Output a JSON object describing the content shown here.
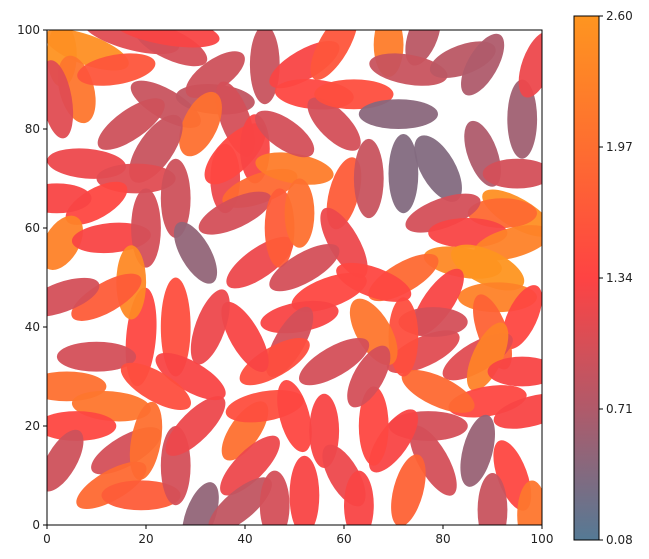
{
  "chart_data": {
    "type": "scatter",
    "marker": "ellipse",
    "title": "",
    "xlabel": "",
    "ylabel": "",
    "xlim": [
      0,
      100
    ],
    "ylim": [
      0,
      100
    ],
    "xticks": [
      "0",
      "20",
      "40",
      "60",
      "80",
      "100"
    ],
    "yticks": [
      "0",
      "20",
      "40",
      "60",
      "80",
      "100"
    ],
    "grid": false,
    "colorbar": {
      "min": 0.08,
      "max": 2.6,
      "ticks": [
        "0.08",
        "0.71",
        "1.34",
        "1.97",
        "2.60"
      ],
      "colors": [
        "#557a95",
        "#b05a6a",
        "#fe4343",
        "#fe6e30",
        "#fe9520"
      ]
    },
    "ellipses": [
      {
        "x": 3,
        "y": 95,
        "w": 6,
        "h": 13,
        "angle": 0,
        "c": 2.55
      },
      {
        "x": 8,
        "y": 96,
        "w": 18,
        "h": 6,
        "angle": -20,
        "c": 2.5
      },
      {
        "x": 6,
        "y": 88,
        "w": 7,
        "h": 14,
        "angle": 15,
        "c": 2.1
      },
      {
        "x": 14,
        "y": 92,
        "w": 16,
        "h": 6,
        "angle": 10,
        "c": 1.6
      },
      {
        "x": 17,
        "y": 99,
        "w": 20,
        "h": 6,
        "angle": -15,
        "c": 1.1
      },
      {
        "x": 25,
        "y": 97,
        "w": 16,
        "h": 6,
        "angle": -25,
        "c": 1.0
      },
      {
        "x": 24,
        "y": 100,
        "w": 22,
        "h": 6,
        "angle": -10,
        "c": 1.3
      },
      {
        "x": 24,
        "y": 85,
        "w": 16,
        "h": 6,
        "angle": -30,
        "c": 0.9
      },
      {
        "x": 34,
        "y": 86,
        "w": 16,
        "h": 6,
        "angle": -5,
        "c": 0.85
      },
      {
        "x": 34,
        "y": 91,
        "w": 14,
        "h": 6,
        "angle": 35,
        "c": 0.95
      },
      {
        "x": 44,
        "y": 93,
        "w": 6,
        "h": 16,
        "angle": 0,
        "c": 0.9
      },
      {
        "x": 38,
        "y": 82,
        "w": 6,
        "h": 16,
        "angle": 20,
        "c": 1.0
      },
      {
        "x": 31,
        "y": 81,
        "w": 7,
        "h": 14,
        "angle": -25,
        "c": 2.0
      },
      {
        "x": 22,
        "y": 76,
        "w": 7,
        "h": 16,
        "angle": -35,
        "c": 0.9
      },
      {
        "x": 17,
        "y": 81,
        "w": 16,
        "h": 6,
        "angle": 35,
        "c": 0.95
      },
      {
        "x": 2,
        "y": 86,
        "w": 6,
        "h": 16,
        "angle": 10,
        "c": 1.1
      },
      {
        "x": 8,
        "y": 73,
        "w": 16,
        "h": 6,
        "angle": -5,
        "c": 1.2
      },
      {
        "x": 18,
        "y": 70,
        "w": 16,
        "h": 6,
        "angle": 0,
        "c": 1.1
      },
      {
        "x": 10,
        "y": 65,
        "w": 14,
        "h": 6,
        "angle": 30,
        "c": 1.4
      },
      {
        "x": 2,
        "y": 66,
        "w": 14,
        "h": 6,
        "angle": 0,
        "c": 1.3
      },
      {
        "x": 3,
        "y": 57,
        "w": 7,
        "h": 12,
        "angle": -30,
        "c": 2.3
      },
      {
        "x": 13,
        "y": 58,
        "w": 16,
        "h": 6,
        "angle": 5,
        "c": 1.3
      },
      {
        "x": 20,
        "y": 60,
        "w": 6,
        "h": 16,
        "angle": 0,
        "c": 1.0
      },
      {
        "x": 26,
        "y": 66,
        "w": 6,
        "h": 16,
        "angle": 0,
        "c": 0.95
      },
      {
        "x": 30,
        "y": 55,
        "w": 6,
        "h": 14,
        "angle": 30,
        "c": 0.5
      },
      {
        "x": 36,
        "y": 70,
        "w": 6,
        "h": 14,
        "angle": 0,
        "c": 1.2
      },
      {
        "x": 38,
        "y": 75,
        "w": 16,
        "h": 7,
        "angle": 45,
        "c": 1.4
      },
      {
        "x": 42,
        "y": 76,
        "w": 6,
        "h": 14,
        "angle": 0,
        "c": 1.3
      },
      {
        "x": 43,
        "y": 68,
        "w": 16,
        "h": 6,
        "angle": 20,
        "c": 1.9
      },
      {
        "x": 38,
        "y": 63,
        "w": 16,
        "h": 6,
        "angle": 25,
        "c": 1.0
      },
      {
        "x": 43,
        "y": 53,
        "w": 16,
        "h": 6,
        "angle": 35,
        "c": 1.2
      },
      {
        "x": 47,
        "y": 60,
        "w": 6,
        "h": 16,
        "angle": 0,
        "c": 1.7
      },
      {
        "x": 50,
        "y": 72,
        "w": 16,
        "h": 6,
        "angle": -10,
        "c": 2.2
      },
      {
        "x": 51,
        "y": 63,
        "w": 6,
        "h": 14,
        "angle": 0,
        "c": 2.0
      },
      {
        "x": 48,
        "y": 79,
        "w": 14,
        "h": 6,
        "angle": -35,
        "c": 1.0
      },
      {
        "x": 52,
        "y": 93,
        "w": 16,
        "h": 6,
        "angle": 30,
        "c": 1.3
      },
      {
        "x": 54,
        "y": 87,
        "w": 16,
        "h": 6,
        "angle": -5,
        "c": 1.4
      },
      {
        "x": 58,
        "y": 81,
        "w": 6,
        "h": 14,
        "angle": 45,
        "c": 1.0
      },
      {
        "x": 58,
        "y": 97,
        "w": 6,
        "h": 16,
        "angle": -30,
        "c": 1.6
      },
      {
        "x": 62,
        "y": 87,
        "w": 16,
        "h": 6,
        "angle": 0,
        "c": 1.5
      },
      {
        "x": 60,
        "y": 67,
        "w": 6,
        "h": 15,
        "angle": -15,
        "c": 1.7
      },
      {
        "x": 60,
        "y": 57,
        "w": 6,
        "h": 16,
        "angle": 30,
        "c": 1.2
      },
      {
        "x": 65,
        "y": 70,
        "w": 6,
        "h": 16,
        "angle": 0,
        "c": 0.9
      },
      {
        "x": 69,
        "y": 97,
        "w": 6,
        "h": 13,
        "angle": 0,
        "c": 2.2
      },
      {
        "x": 76,
        "y": 99,
        "w": 6,
        "h": 13,
        "angle": -20,
        "c": 0.8
      },
      {
        "x": 73,
        "y": 92,
        "w": 16,
        "h": 6,
        "angle": -10,
        "c": 0.9
      },
      {
        "x": 71,
        "y": 83,
        "w": 16,
        "h": 6,
        "angle": 0,
        "c": 0.45
      },
      {
        "x": 72,
        "y": 71,
        "w": 6,
        "h": 16,
        "angle": 0,
        "c": 0.4
      },
      {
        "x": 79,
        "y": 72,
        "w": 7,
        "h": 15,
        "angle": 30,
        "c": 0.4
      },
      {
        "x": 84,
        "y": 94,
        "w": 14,
        "h": 6,
        "angle": 20,
        "c": 0.8
      },
      {
        "x": 88,
        "y": 93,
        "w": 6,
        "h": 14,
        "angle": -30,
        "c": 0.7
      },
      {
        "x": 88,
        "y": 75,
        "w": 6,
        "h": 14,
        "angle": 20,
        "c": 0.7
      },
      {
        "x": 96,
        "y": 82,
        "w": 6,
        "h": 16,
        "angle": 0,
        "c": 0.6
      },
      {
        "x": 99,
        "y": 93,
        "w": 6,
        "h": 14,
        "angle": -20,
        "c": 1.2
      },
      {
        "x": 95,
        "y": 71,
        "w": 14,
        "h": 6,
        "angle": 0,
        "c": 1.0
      },
      {
        "x": 95,
        "y": 63,
        "w": 16,
        "h": 6,
        "angle": -30,
        "c": 2.5
      },
      {
        "x": 92,
        "y": 63,
        "w": 14,
        "h": 6,
        "angle": 0,
        "c": 1.9
      },
      {
        "x": 80,
        "y": 63,
        "w": 16,
        "h": 6,
        "angle": 20,
        "c": 1.0
      },
      {
        "x": 85,
        "y": 59,
        "w": 16,
        "h": 6,
        "angle": 0,
        "c": 1.3
      },
      {
        "x": 94,
        "y": 57,
        "w": 16,
        "h": 6,
        "angle": 15,
        "c": 2.3
      },
      {
        "x": 84,
        "y": 53,
        "w": 16,
        "h": 6,
        "angle": -10,
        "c": 2.4
      },
      {
        "x": 89,
        "y": 52,
        "w": 16,
        "h": 7,
        "angle": -25,
        "c": 2.6
      },
      {
        "x": 91,
        "y": 46,
        "w": 16,
        "h": 6,
        "angle": 0,
        "c": 2.3
      },
      {
        "x": 96,
        "y": 42,
        "w": 6,
        "h": 14,
        "angle": -25,
        "c": 1.4
      },
      {
        "x": 90,
        "y": 39,
        "w": 6,
        "h": 16,
        "angle": 20,
        "c": 1.8
      },
      {
        "x": 87,
        "y": 34,
        "w": 16,
        "h": 6,
        "angle": 30,
        "c": 1.1
      },
      {
        "x": 89,
        "y": 34,
        "w": 6,
        "h": 15,
        "angle": -25,
        "c": 2.3
      },
      {
        "x": 96,
        "y": 31,
        "w": 14,
        "h": 6,
        "angle": 0,
        "c": 1.3
      },
      {
        "x": 89,
        "y": 25,
        "w": 16,
        "h": 6,
        "angle": 10,
        "c": 1.4
      },
      {
        "x": 98,
        "y": 23,
        "w": 16,
        "h": 6,
        "angle": 15,
        "c": 1.3
      },
      {
        "x": 87,
        "y": 15,
        "w": 6,
        "h": 15,
        "angle": -15,
        "c": 0.55
      },
      {
        "x": 94,
        "y": 10,
        "w": 6,
        "h": 15,
        "angle": 20,
        "c": 1.4
      },
      {
        "x": 90,
        "y": 3,
        "w": 6,
        "h": 15,
        "angle": 0,
        "c": 0.9
      },
      {
        "x": 98,
        "y": 2,
        "w": 6,
        "h": 14,
        "angle": 0,
        "c": 2.1
      },
      {
        "x": 79,
        "y": 45,
        "w": 6,
        "h": 16,
        "angle": -35,
        "c": 1.3
      },
      {
        "x": 76,
        "y": 35,
        "w": 16,
        "h": 6,
        "angle": 25,
        "c": 1.1
      },
      {
        "x": 78,
        "y": 41,
        "w": 14,
        "h": 6,
        "angle": 0,
        "c": 1.0
      },
      {
        "x": 79,
        "y": 27,
        "w": 16,
        "h": 6,
        "angle": -25,
        "c": 1.9
      },
      {
        "x": 77,
        "y": 20,
        "w": 16,
        "h": 6,
        "angle": 0,
        "c": 1.0
      },
      {
        "x": 78,
        "y": 13,
        "w": 6,
        "h": 16,
        "angle": 30,
        "c": 1.0
      },
      {
        "x": 73,
        "y": 7,
        "w": 6,
        "h": 15,
        "angle": -15,
        "c": 1.8
      },
      {
        "x": 70,
        "y": 17,
        "w": 6,
        "h": 15,
        "angle": -35,
        "c": 1.3
      },
      {
        "x": 66,
        "y": 20,
        "w": 6,
        "h": 16,
        "angle": 0,
        "c": 1.4
      },
      {
        "x": 72,
        "y": 38,
        "w": 6,
        "h": 16,
        "angle": 0,
        "c": 1.5
      },
      {
        "x": 72,
        "y": 50,
        "w": 16,
        "h": 6,
        "angle": 30,
        "c": 1.9
      },
      {
        "x": 66,
        "y": 49,
        "w": 16,
        "h": 6,
        "angle": -20,
        "c": 1.4
      },
      {
        "x": 66,
        "y": 39,
        "w": 7,
        "h": 15,
        "angle": 30,
        "c": 2.1
      },
      {
        "x": 65,
        "y": 30,
        "w": 6,
        "h": 14,
        "angle": -30,
        "c": 1.0
      },
      {
        "x": 58,
        "y": 33,
        "w": 16,
        "h": 6,
        "angle": 30,
        "c": 1.0
      },
      {
        "x": 57,
        "y": 47,
        "w": 16,
        "h": 6,
        "angle": 20,
        "c": 1.4
      },
      {
        "x": 52,
        "y": 52,
        "w": 16,
        "h": 6,
        "angle": 30,
        "c": 1.0
      },
      {
        "x": 51,
        "y": 42,
        "w": 16,
        "h": 6,
        "angle": 10,
        "c": 1.3
      },
      {
        "x": 49,
        "y": 37,
        "w": 6,
        "h": 16,
        "angle": -30,
        "c": 1.0
      },
      {
        "x": 46,
        "y": 33,
        "w": 16,
        "h": 6,
        "angle": 30,
        "c": 1.5
      },
      {
        "x": 40,
        "y": 38,
        "w": 6,
        "h": 16,
        "angle": 30,
        "c": 1.3
      },
      {
        "x": 33,
        "y": 40,
        "w": 6,
        "h": 16,
        "angle": -20,
        "c": 1.2
      },
      {
        "x": 26,
        "y": 40,
        "w": 6,
        "h": 20,
        "angle": 0,
        "c": 1.5
      },
      {
        "x": 19,
        "y": 38,
        "w": 6,
        "h": 20,
        "angle": -5,
        "c": 1.4
      },
      {
        "x": 17,
        "y": 49,
        "w": 6,
        "h": 15,
        "angle": 0,
        "c": 2.4
      },
      {
        "x": 12,
        "y": 46,
        "w": 16,
        "h": 6,
        "angle": 30,
        "c": 1.7
      },
      {
        "x": 3,
        "y": 46,
        "w": 16,
        "h": 6,
        "angle": 20,
        "c": 1.0
      },
      {
        "x": 10,
        "y": 34,
        "w": 16,
        "h": 6,
        "angle": 0,
        "c": 1.0
      },
      {
        "x": 4,
        "y": 28,
        "w": 16,
        "h": 6,
        "angle": 0,
        "c": 2.0
      },
      {
        "x": 13,
        "y": 24,
        "w": 16,
        "h": 6,
        "angle": -5,
        "c": 2.1
      },
      {
        "x": 6,
        "y": 20,
        "w": 16,
        "h": 6,
        "angle": 0,
        "c": 1.4
      },
      {
        "x": 3,
        "y": 13,
        "w": 6,
        "h": 14,
        "angle": -30,
        "c": 0.95
      },
      {
        "x": 16,
        "y": 15,
        "w": 16,
        "h": 6,
        "angle": 30,
        "c": 1.0
      },
      {
        "x": 20,
        "y": 17,
        "w": 6,
        "h": 16,
        "angle": -10,
        "c": 2.0
      },
      {
        "x": 13,
        "y": 8,
        "w": 16,
        "h": 6,
        "angle": 30,
        "c": 1.9
      },
      {
        "x": 19,
        "y": 6,
        "w": 16,
        "h": 6,
        "angle": 0,
        "c": 1.7
      },
      {
        "x": 26,
        "y": 12,
        "w": 6,
        "h": 16,
        "angle": 0,
        "c": 1.0
      },
      {
        "x": 30,
        "y": 20,
        "w": 16,
        "h": 6,
        "angle": 45,
        "c": 1.2
      },
      {
        "x": 29,
        "y": 30,
        "w": 16,
        "h": 6,
        "angle": -30,
        "c": 1.3
      },
      {
        "x": 22,
        "y": 28,
        "w": 16,
        "h": 6,
        "angle": -30,
        "c": 1.5
      },
      {
        "x": 31,
        "y": 2,
        "w": 6,
        "h": 14,
        "angle": -20,
        "c": 0.5
      },
      {
        "x": 40,
        "y": 19,
        "w": 6,
        "h": 14,
        "angle": -35,
        "c": 2.0
      },
      {
        "x": 41,
        "y": 12,
        "w": 16,
        "h": 6,
        "angle": 45,
        "c": 1.2
      },
      {
        "x": 39,
        "y": 4,
        "w": 16,
        "h": 6,
        "angle": 40,
        "c": 0.85
      },
      {
        "x": 46,
        "y": 4,
        "w": 6,
        "h": 14,
        "angle": 0,
        "c": 1.0
      },
      {
        "x": 44,
        "y": 24,
        "w": 16,
        "h": 6,
        "angle": 10,
        "c": 1.5
      },
      {
        "x": 50,
        "y": 22,
        "w": 6,
        "h": 15,
        "angle": 15,
        "c": 1.4
      },
      {
        "x": 52,
        "y": 6,
        "w": 6,
        "h": 16,
        "angle": 0,
        "c": 1.3
      },
      {
        "x": 56,
        "y": 19,
        "w": 6,
        "h": 15,
        "angle": 0,
        "c": 1.3
      },
      {
        "x": 60,
        "y": 10,
        "w": 6,
        "h": 14,
        "angle": 30,
        "c": 1.2
      },
      {
        "x": 63,
        "y": 4,
        "w": 6,
        "h": 14,
        "angle": 0,
        "c": 1.3
      }
    ]
  }
}
